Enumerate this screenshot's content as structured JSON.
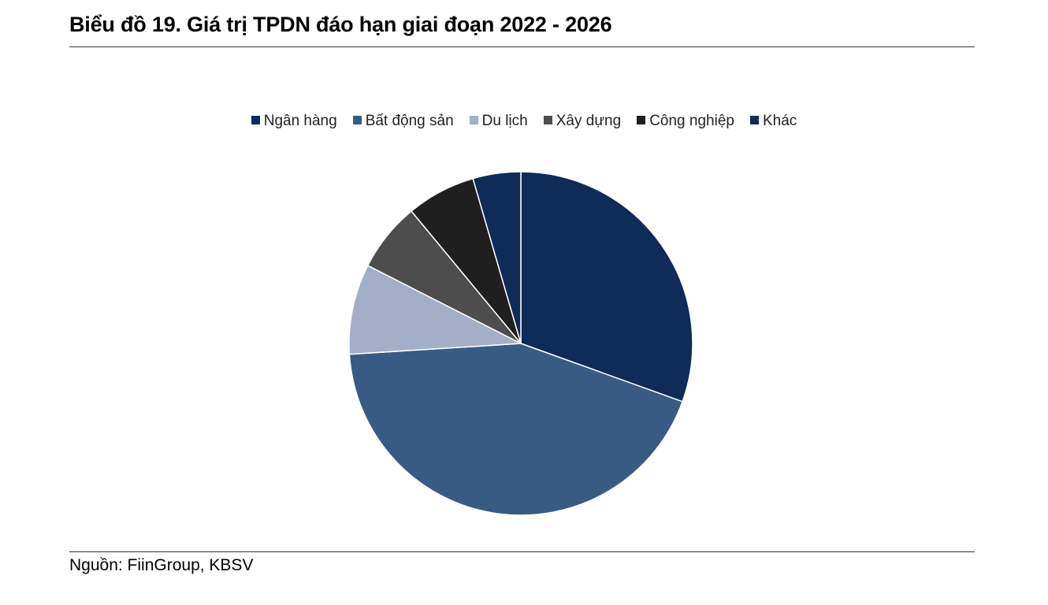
{
  "title": "Biểu đồ 19. Giá trị TPDN đáo hạn giai đoạn 2022 - 2026",
  "source": "Nguồn: FiinGroup, KBSV",
  "chart_data": {
    "type": "pie",
    "title": "Biểu đồ 19. Giá trị TPDN đáo hạn giai đoạn 2022 - 2026",
    "legend_position": "top",
    "unit": "%",
    "series": [
      {
        "name": "Ngân hàng",
        "value": 30.5,
        "color": "#0f2b57"
      },
      {
        "name": "Bất động sản",
        "value": 43.5,
        "color": "#385b84"
      },
      {
        "name": "Du lịch",
        "value": 8.5,
        "color": "#a3afc7"
      },
      {
        "name": "Xây dựng",
        "value": 6.5,
        "color": "#4d4d4d"
      },
      {
        "name": "Công nghiệp",
        "value": 6.5,
        "color": "#1f1f1f"
      },
      {
        "name": "Khác",
        "value": 4.5,
        "color": "#0f2b57"
      }
    ]
  }
}
